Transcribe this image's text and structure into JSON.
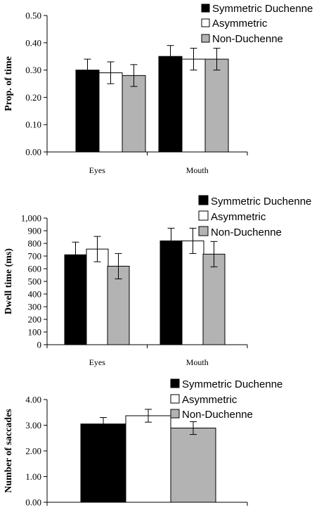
{
  "colors": {
    "symmetric": "#000000",
    "asymmetric": "#ffffff",
    "non_duchenne": "#b3b3b3",
    "axis": "#000000"
  },
  "chart_data": [
    {
      "type": "bar",
      "title": "",
      "ylabel": "Prop. of time",
      "xlabel": "",
      "ylim": [
        0,
        0.5
      ],
      "yticks": [
        0,
        0.1,
        0.2,
        0.3,
        0.4,
        0.5
      ],
      "ytick_labels": [
        "0.00",
        "0.10",
        "0.20",
        "0.30",
        "0.40",
        "0.50"
      ],
      "categories": [
        "Eyes",
        "Mouth"
      ],
      "legend_position": "top-right",
      "series": [
        {
          "name": "Symmetric Duchenne",
          "color": "#000000",
          "values": [
            0.3,
            0.35
          ],
          "errors": [
            0.04,
            0.04
          ]
        },
        {
          "name": "Asymmetric",
          "color": "#ffffff",
          "values": [
            0.29,
            0.34
          ],
          "errors": [
            0.04,
            0.04
          ]
        },
        {
          "name": "Non-Duchenne",
          "color": "#b3b3b3",
          "values": [
            0.28,
            0.34
          ],
          "errors": [
            0.04,
            0.04
          ]
        }
      ]
    },
    {
      "type": "bar",
      "title": "",
      "ylabel": "Dwell  time (ms)",
      "xlabel": "",
      "ylim": [
        0,
        1000
      ],
      "yticks": [
        0,
        100,
        200,
        300,
        400,
        500,
        600,
        700,
        800,
        900,
        1000
      ],
      "ytick_labels": [
        "0",
        "100",
        "200",
        "300",
        "400",
        "500",
        "600",
        "700",
        "800",
        "900",
        "1,000"
      ],
      "categories": [
        "Eyes",
        "Mouth"
      ],
      "legend_position": "top-right",
      "series": [
        {
          "name": "Symmetric Duchenne",
          "color": "#000000",
          "values": [
            710,
            820
          ],
          "errors": [
            100,
            100
          ]
        },
        {
          "name": "Asymmetric",
          "color": "#ffffff",
          "values": [
            755,
            820
          ],
          "errors": [
            100,
            100
          ]
        },
        {
          "name": "Non-Duchenne",
          "color": "#b3b3b3",
          "values": [
            620,
            715
          ],
          "errors": [
            100,
            100
          ]
        }
      ]
    },
    {
      "type": "bar",
      "title": "",
      "ylabel": "Number of saccades",
      "xlabel": "",
      "ylim": [
        0,
        4
      ],
      "yticks": [
        0,
        1,
        2,
        3,
        4
      ],
      "ytick_labels": [
        "0.00",
        "1.00",
        "2.00",
        "3.00",
        "4.00"
      ],
      "categories": [
        ""
      ],
      "legend_position": "top-right",
      "series": [
        {
          "name": "Symmetric Duchenne",
          "color": "#000000",
          "values": [
            3.05
          ],
          "errors": [
            0.25
          ]
        },
        {
          "name": "Asymmetric",
          "color": "#ffffff",
          "values": [
            3.37
          ],
          "errors": [
            0.25
          ]
        },
        {
          "name": "Non-Duchenne",
          "color": "#b3b3b3",
          "values": [
            2.89
          ],
          "errors": [
            0.25
          ]
        }
      ]
    }
  ]
}
